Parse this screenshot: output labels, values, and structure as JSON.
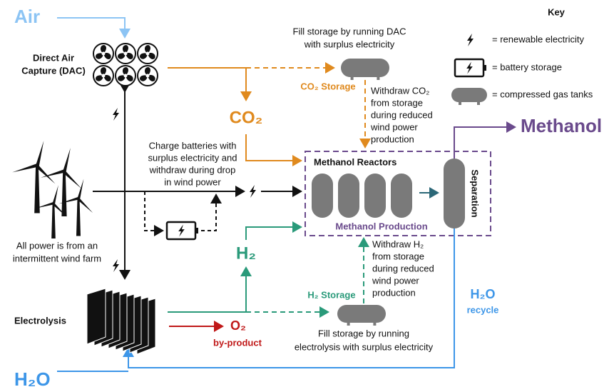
{
  "inputs": {
    "air": "Air",
    "water": "H₂O"
  },
  "dac": {
    "label": [
      "Direct Air",
      "Capture (DAC)"
    ]
  },
  "co2": {
    "label": "CO₂",
    "storage": "CO₂ Storage",
    "fill_note": [
      "Fill storage by running DAC",
      "with surplus electricity"
    ],
    "withdraw_note": [
      "Withdraw CO₂",
      "from storage",
      "during reduced",
      "wind power",
      "production"
    ]
  },
  "wind": {
    "note": [
      "All power is from an",
      "intermittent wind farm"
    ]
  },
  "battery": {
    "note": [
      "Charge batteries with",
      "surplus electricity and",
      "withdraw during drop",
      "in wind power"
    ]
  },
  "electrolysis": {
    "label": "Electrolysis"
  },
  "h2": {
    "label": "H₂",
    "storage": "H₂ Storage",
    "fill_note": [
      "Fill storage by running",
      "electrolysis with surplus electricity"
    ],
    "withdraw_note": [
      "Withdraw H₂",
      "from storage",
      "during reduced",
      "wind power",
      "production"
    ]
  },
  "o2": {
    "label": "O₂",
    "note": "by-product"
  },
  "reactors": {
    "title": "Methanol Reactors",
    "footer": "Methanol Production",
    "separation": "Separation"
  },
  "output": "Methanol",
  "recycle": {
    "label": "H₂O",
    "note": "recycle"
  },
  "key": {
    "title": "Key",
    "items": [
      "= renewable electricity",
      "= battery storage",
      "= compressed gas tanks"
    ]
  }
}
